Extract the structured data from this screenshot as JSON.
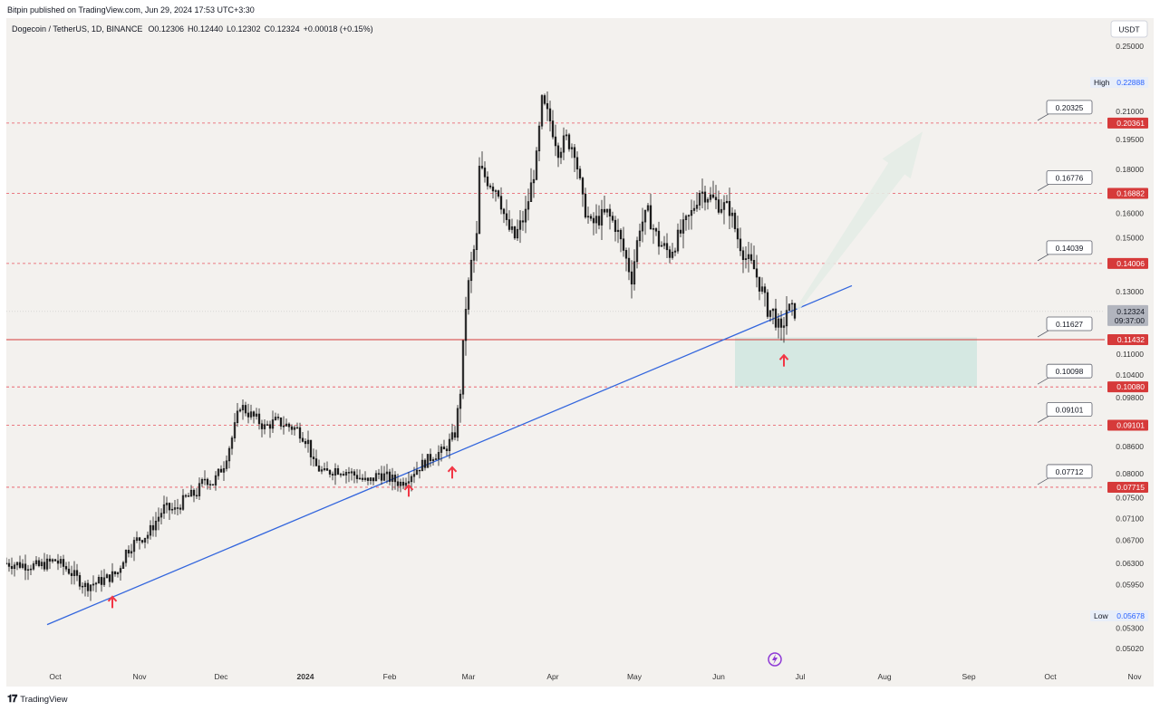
{
  "header": {
    "published": "Bitpin published on TradingView.com, Jun 29, 2024 17:53 UTC+3:30"
  },
  "legend": {
    "symbol": "Dogecoin / TetherUS, 1D, BINANCE",
    "o_label": "O",
    "o": "0.12306",
    "h_label": "H",
    "h": "0.12440",
    "l_label": "L",
    "l": "0.12302",
    "c_label": "C",
    "c": "0.12324",
    "change": "+0.00018 (+0.15%)"
  },
  "currency": "USDT",
  "footer": {
    "brand": "TradingView"
  },
  "colors": {
    "bg": "#f3f1ee",
    "candle": "#1c1c1c",
    "level": "#e8535f",
    "support": "#d63a3a",
    "trend": "#3366dd",
    "zone": "#cfe6df",
    "arrow": "#f23645",
    "projection": "#e4ece6",
    "icon": "#8e3ad6"
  },
  "chart_data": {
    "type": "candlestick",
    "title": "Dogecoin / TetherUS, 1D, BINANCE",
    "scale": "log",
    "ylim": [
      0.0483,
      0.268
    ],
    "x_range": [
      "2023-09-13",
      "2024-11-08"
    ],
    "x_ticks": [
      {
        "label": "Oct",
        "date": "2023-10-01"
      },
      {
        "label": "Nov",
        "date": "2023-11-01"
      },
      {
        "label": "Dec",
        "date": "2023-12-01"
      },
      {
        "label": "2024",
        "date": "2024-01-01"
      },
      {
        "label": "Feb",
        "date": "2024-02-01"
      },
      {
        "label": "Mar",
        "date": "2024-03-01"
      },
      {
        "label": "Apr",
        "date": "2024-04-01"
      },
      {
        "label": "May",
        "date": "2024-05-01"
      },
      {
        "label": "Jun",
        "date": "2024-06-01"
      },
      {
        "label": "Jul",
        "date": "2024-07-01"
      },
      {
        "label": "Aug",
        "date": "2024-08-01"
      },
      {
        "label": "Sep",
        "date": "2024-09-01"
      },
      {
        "label": "Oct",
        "date": "2024-10-01"
      },
      {
        "label": "Nov",
        "date": "2024-11-01"
      }
    ],
    "y_ticks": [
      "0.25000",
      "0.21000",
      "0.19500",
      "0.18000",
      "0.16000",
      "0.15000",
      "0.14000",
      "0.13000",
      "0.11000",
      "0.10400",
      "0.09800",
      "0.08600",
      "0.08000",
      "0.07500",
      "0.07100",
      "0.06700",
      "0.06300",
      "0.05950",
      "0.05300",
      "0.05020"
    ],
    "series_close": [
      [
        "2023-09-13",
        0.063
      ],
      [
        "2023-09-18",
        0.0628
      ],
      [
        "2023-09-25",
        0.0625
      ],
      [
        "2023-10-01",
        0.0635
      ],
      [
        "2023-10-06",
        0.0618
      ],
      [
        "2023-10-12",
        0.0593
      ],
      [
        "2023-10-16",
        0.0598
      ],
      [
        "2023-10-20",
        0.0605
      ],
      [
        "2023-10-24",
        0.0615
      ],
      [
        "2023-10-27",
        0.065
      ],
      [
        "2023-10-31",
        0.067
      ],
      [
        "2023-11-04",
        0.068
      ],
      [
        "2023-11-07",
        0.0705
      ],
      [
        "2023-11-10",
        0.073
      ],
      [
        "2023-11-14",
        0.0725
      ],
      [
        "2023-11-18",
        0.075
      ],
      [
        "2023-11-22",
        0.076
      ],
      [
        "2023-11-25",
        0.079
      ],
      [
        "2023-11-28",
        0.078
      ],
      [
        "2023-12-02",
        0.082
      ],
      [
        "2023-12-05",
        0.088
      ],
      [
        "2023-12-08",
        0.096
      ],
      [
        "2023-12-11",
        0.094
      ],
      [
        "2023-12-14",
        0.0925
      ],
      [
        "2023-12-17",
        0.0905
      ],
      [
        "2023-12-21",
        0.092
      ],
      [
        "2023-12-25",
        0.091
      ],
      [
        "2023-12-29",
        0.09
      ],
      [
        "2024-01-02",
        0.087
      ],
      [
        "2024-01-04",
        0.082
      ],
      [
        "2024-01-08",
        0.08
      ],
      [
        "2024-01-12",
        0.081
      ],
      [
        "2024-01-16",
        0.0805
      ],
      [
        "2024-01-20",
        0.0795
      ],
      [
        "2024-01-24",
        0.078
      ],
      [
        "2024-01-28",
        0.08
      ],
      [
        "2024-02-01",
        0.079
      ],
      [
        "2024-02-05",
        0.078
      ],
      [
        "2024-02-09",
        0.08
      ],
      [
        "2024-02-13",
        0.082
      ],
      [
        "2024-02-17",
        0.084
      ],
      [
        "2024-02-21",
        0.085
      ],
      [
        "2024-02-25",
        0.089
      ],
      [
        "2024-02-27",
        0.1
      ],
      [
        "2024-02-29",
        0.125
      ],
      [
        "2024-03-02",
        0.14
      ],
      [
        "2024-03-04",
        0.15
      ],
      [
        "2024-03-05",
        0.18
      ],
      [
        "2024-03-08",
        0.175
      ],
      [
        "2024-03-12",
        0.17
      ],
      [
        "2024-03-15",
        0.155
      ],
      [
        "2024-03-18",
        0.15
      ],
      [
        "2024-03-22",
        0.16
      ],
      [
        "2024-03-26",
        0.185
      ],
      [
        "2024-03-28",
        0.215
      ],
      [
        "2024-03-31",
        0.205
      ],
      [
        "2024-04-03",
        0.19
      ],
      [
        "2024-04-06",
        0.195
      ],
      [
        "2024-04-09",
        0.19
      ],
      [
        "2024-04-12",
        0.165
      ],
      [
        "2024-04-15",
        0.155
      ],
      [
        "2024-04-18",
        0.158
      ],
      [
        "2024-04-21",
        0.16
      ],
      [
        "2024-04-24",
        0.155
      ],
      [
        "2024-04-27",
        0.145
      ],
      [
        "2024-04-30",
        0.135
      ],
      [
        "2024-05-03",
        0.155
      ],
      [
        "2024-05-06",
        0.16
      ],
      [
        "2024-05-10",
        0.148
      ],
      [
        "2024-05-14",
        0.144
      ],
      [
        "2024-05-18",
        0.152
      ],
      [
        "2024-05-22",
        0.16
      ],
      [
        "2024-05-25",
        0.17
      ],
      [
        "2024-05-28",
        0.168
      ],
      [
        "2024-06-01",
        0.164
      ],
      [
        "2024-06-05",
        0.162
      ],
      [
        "2024-06-08",
        0.15
      ],
      [
        "2024-06-11",
        0.142
      ],
      [
        "2024-06-14",
        0.138
      ],
      [
        "2024-06-17",
        0.13
      ],
      [
        "2024-06-19",
        0.124
      ],
      [
        "2024-06-21",
        0.123
      ],
      [
        "2024-06-24",
        0.116
      ],
      [
        "2024-06-26",
        0.124
      ],
      [
        "2024-06-29",
        0.12324
      ]
    ],
    "levels": [
      {
        "label": "0.20325",
        "axis": "0.20361",
        "value": 0.20361
      },
      {
        "label": "0.16776",
        "axis": "0.16882",
        "value": 0.16882
      },
      {
        "label": "0.14039",
        "axis": "0.14006",
        "value": 0.14006
      },
      {
        "label": "0.11627",
        "axis": "0.11432",
        "value": 0.11432,
        "solid": true
      },
      {
        "label": "0.10098",
        "axis": "0.10080",
        "value": 0.1008
      },
      {
        "label": "0.09101",
        "axis": "0.09101",
        "value": 0.09101
      },
      {
        "label": "0.07712",
        "axis": "0.07715",
        "value": 0.07715
      }
    ],
    "current": {
      "price": "0.12324",
      "countdown": "09:37:00",
      "value": 0.12324
    },
    "high": {
      "label": "High",
      "value": "0.22888"
    },
    "low": {
      "label": "Low",
      "value": "0.05678"
    },
    "trendline": {
      "from": [
        "2023-09-28",
        0.0535
      ],
      "to": [
        "2024-07-20",
        0.132
      ]
    },
    "support_zone": {
      "from": "2024-06-07",
      "to": "2024-09-04",
      "top": 0.115,
      "bottom": 0.1008
    },
    "projection": {
      "from": [
        "2024-06-30",
        0.124
      ],
      "to": [
        "2024-08-15",
        0.199
      ]
    },
    "arrows": [
      [
        "2023-10-22",
        0.057
      ],
      [
        "2024-02-08",
        0.0767
      ],
      [
        "2024-02-24",
        0.0805
      ],
      [
        "2024-06-25",
        0.1085
      ]
    ]
  }
}
